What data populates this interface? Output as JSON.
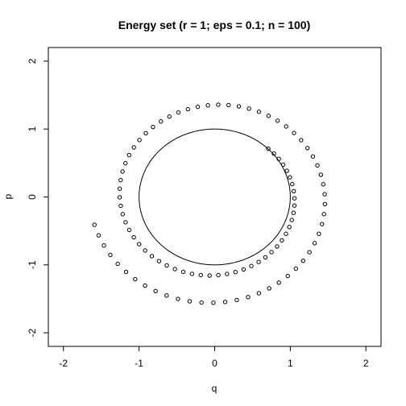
{
  "chart_data": {
    "type": "scatter",
    "title": "Energy set (r = 1; eps = 0.1; n = 100)",
    "xlabel": "q",
    "ylabel": "p",
    "xlim": [
      -2.2,
      2.2
    ],
    "ylim": [
      -2.2,
      2.2
    ],
    "x_ticks": [
      "-2",
      "-1",
      "0",
      "1",
      "2"
    ],
    "y_ticks": [
      "-2",
      "-1",
      "0",
      "1",
      "2"
    ],
    "grid": false,
    "legend": "none",
    "energy_circle": {
      "center": [
        0,
        0
      ],
      "radius": 1
    },
    "points": {
      "r": 1,
      "eps": 0.1,
      "n": 100,
      "start": [
        0.71,
        0.71
      ],
      "end": [
        -1.59,
        -0.41
      ]
    }
  }
}
